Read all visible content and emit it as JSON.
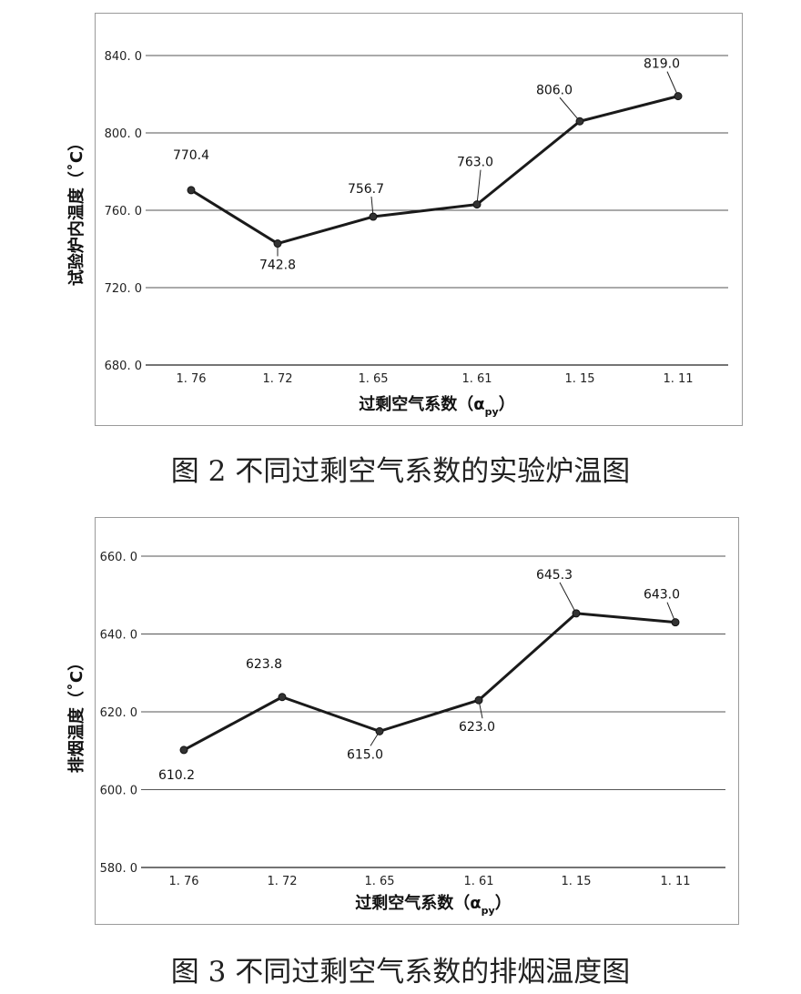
{
  "chart_data": [
    {
      "type": "line",
      "categories": [
        "1.76",
        "1.72",
        "1.65",
        "1.61",
        "1.15",
        "1.11"
      ],
      "values": [
        770.4,
        742.8,
        756.7,
        763.0,
        806.0,
        819.0
      ],
      "value_labels": [
        "770.4",
        "742.8",
        "756.7",
        "763.0",
        "806.0",
        "819.0"
      ],
      "ylabel": "试验炉内温度（˚C）",
      "xlabel": "过剩空气系数（α",
      "xlabel_sub": "py",
      "xlabel_close": "）",
      "ylim": [
        680,
        840
      ],
      "yticks": [
        680,
        720,
        760,
        800,
        840
      ],
      "ytick_labels": [
        "680. 0",
        "720. 0",
        "760. 0",
        "800. 0",
        "840. 0"
      ],
      "xtick_labels": [
        "1. 76",
        "1. 72",
        "1. 65",
        "1. 61",
        "1. 15",
        "1. 11"
      ],
      "grid": true,
      "caption": "图 2 不同过剩空气系数的实验炉温图"
    },
    {
      "type": "line",
      "categories": [
        "1.76",
        "1.72",
        "1.65",
        "1.61",
        "1.15",
        "1.11"
      ],
      "values": [
        610.2,
        623.8,
        615.0,
        623.0,
        645.3,
        643.0
      ],
      "value_labels": [
        "610.2",
        "623.8",
        "615.0",
        "623.0",
        "645.3",
        "643.0"
      ],
      "ylabel": "排烟温度（˚C）",
      "xlabel": "过剩空气系数（α",
      "xlabel_sub": "py",
      "xlabel_close": "）",
      "ylim": [
        580,
        660
      ],
      "yticks": [
        580,
        600,
        620,
        640,
        660
      ],
      "ytick_labels": [
        "580. 0",
        "600. 0",
        "620. 0",
        "640. 0",
        "660. 0"
      ],
      "xtick_labels": [
        "1. 76",
        "1. 72",
        "1. 65",
        "1. 61",
        "1. 15",
        "1. 11"
      ],
      "grid": true,
      "caption": "图 3 不同过剩空气系数的排烟温度图"
    }
  ]
}
